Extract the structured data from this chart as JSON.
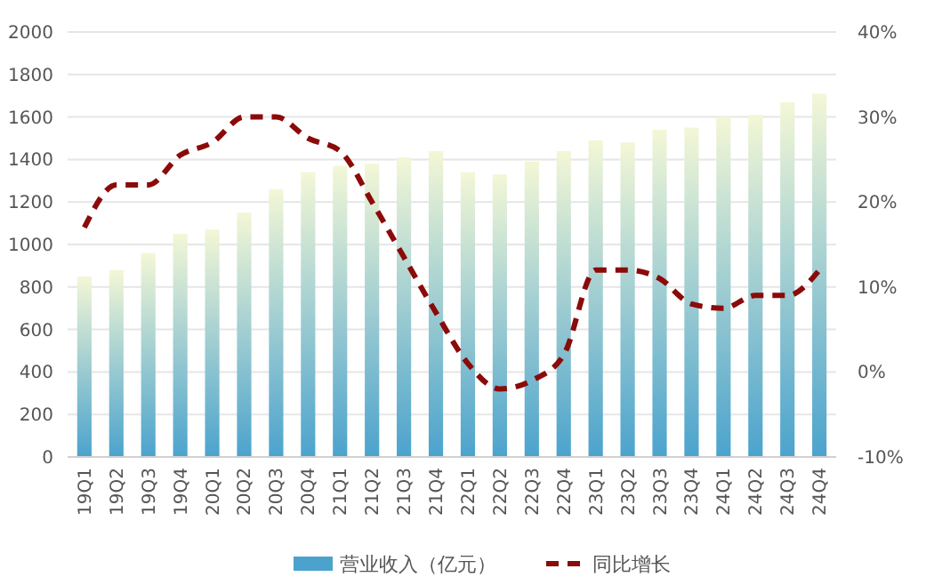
{
  "chart_data": {
    "type": "bar",
    "categories": [
      "19Q1",
      "19Q2",
      "19Q3",
      "19Q4",
      "20Q1",
      "20Q2",
      "20Q3",
      "20Q4",
      "21Q1",
      "21Q2",
      "21Q3",
      "21Q4",
      "22Q1",
      "22Q2",
      "22Q3",
      "22Q4",
      "23Q1",
      "23Q2",
      "23Q3",
      "23Q4",
      "24Q1",
      "24Q2",
      "24Q3",
      "24Q4"
    ],
    "series": [
      {
        "name": "营业收入（亿元）",
        "color": "#4ba3cd",
        "values": [
          850,
          880,
          960,
          1050,
          1070,
          1150,
          1260,
          1340,
          1370,
          1380,
          1410,
          1440,
          1340,
          1330,
          1390,
          1440,
          1490,
          1480,
          1540,
          1550,
          1600,
          1610,
          1670,
          1710
        ]
      },
      {
        "name": "同比增长",
        "type": "line",
        "axis": "y2",
        "color": "#8b0a0a",
        "line_style": "dashed",
        "values": [
          17,
          22,
          22,
          25.5,
          27,
          30,
          30,
          27.5,
          26,
          20,
          13.5,
          7,
          1,
          -2,
          -1,
          2,
          12,
          12,
          11,
          8,
          7.5,
          9,
          9,
          12
        ]
      }
    ],
    "ylim": [
      0,
      2000
    ],
    "yticks": [
      0,
      200,
      400,
      600,
      800,
      1000,
      1200,
      1400,
      1600,
      1800,
      2000
    ],
    "y2lim": [
      -10,
      40
    ],
    "y2ticks": [
      {
        "value": -10,
        "label": "-10%"
      },
      {
        "value": 0,
        "label": "0%"
      },
      {
        "value": 10,
        "label": "10%"
      },
      {
        "value": 20,
        "label": "20%"
      },
      {
        "value": 30,
        "label": "30%"
      },
      {
        "value": 40,
        "label": "40%"
      }
    ],
    "grid": "y",
    "legend": "bottom",
    "marker": "none"
  }
}
